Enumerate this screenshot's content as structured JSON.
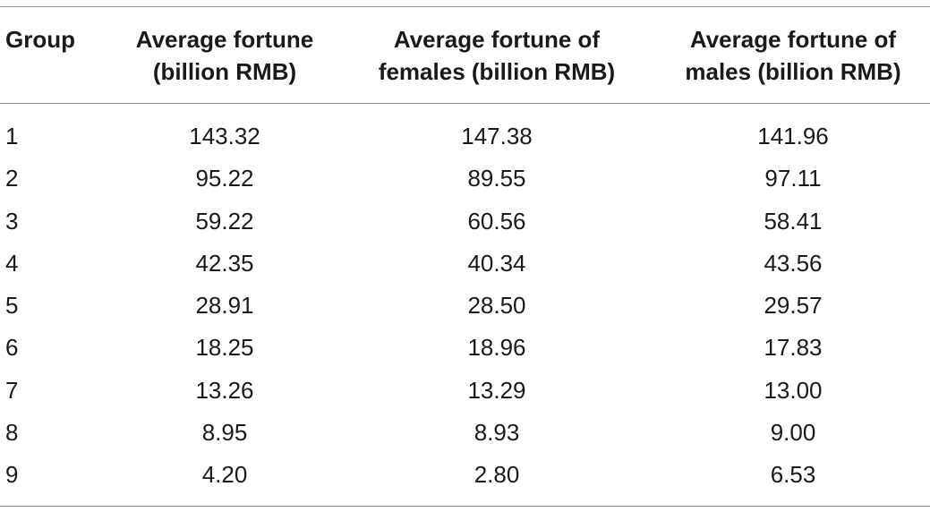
{
  "table": {
    "headers": [
      "Group",
      "Average fortune\n(billion RMB)",
      "Average fortune of\nfemales (billion RMB)",
      "Average fortune of\nmales (billion RMB)"
    ],
    "rows": [
      [
        "1",
        "143.32",
        "147.38",
        "141.96"
      ],
      [
        "2",
        "95.22",
        "89.55",
        "97.11"
      ],
      [
        "3",
        "59.22",
        "60.56",
        "58.41"
      ],
      [
        "4",
        "42.35",
        "40.34",
        "43.56"
      ],
      [
        "5",
        "28.91",
        "28.50",
        "29.57"
      ],
      [
        "6",
        "18.25",
        "18.96",
        "17.83"
      ],
      [
        "7",
        "13.26",
        "13.29",
        "13.00"
      ],
      [
        "8",
        "8.95",
        "8.93",
        "9.00"
      ],
      [
        "9",
        "4.20",
        "2.80",
        "6.53"
      ]
    ]
  }
}
